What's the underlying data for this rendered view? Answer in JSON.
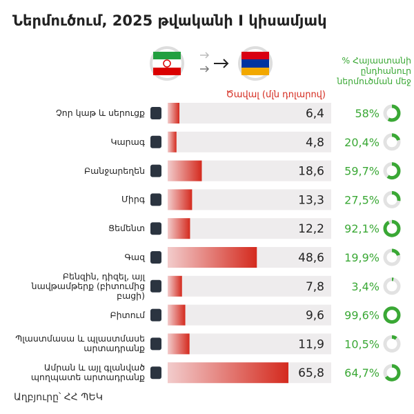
{
  "chart_data": {
    "type": "bar",
    "orientation": "horizontal",
    "title": "Ներմուծում, 2025 թվականի I կիսամյակ",
    "value_header": "Ծավալ (մլն դոլարով)",
    "share_header": "% Հայաստանի ընդհանուր ներմուծման մեջ",
    "source": "Աղբյուրը՝ ՀՀ ՊԵԿ",
    "categories": [
      "Չոր կաթ և սերուցք",
      "Կարագ",
      "Բանջարեղեն",
      "Միրգ",
      "Ցեմենտ",
      "Գազ",
      "Բենզին, դիզել, այլ նավթամթերք (բիտումից բացի)",
      "Բիտում",
      "Պլաստմասա և պլաստմասե արտադրանք",
      "Ամրան և այլ գլանված պողպատե արտադրանք"
    ],
    "values": [
      6.4,
      4.8,
      18.6,
      13.3,
      12.2,
      48.6,
      7.8,
      9.6,
      11.9,
      65.8
    ],
    "value_labels": [
      "6,4",
      "4,8",
      "18,6",
      "13,3",
      "12,2",
      "48,6",
      "7,8",
      "9,6",
      "11,9",
      "65,8"
    ],
    "shares": [
      58,
      20.4,
      59.7,
      27.5,
      92.1,
      19.9,
      3.4,
      99.6,
      10.5,
      64.7
    ],
    "share_labels": [
      "58%",
      "20,4%",
      "59,7%",
      "27,5%",
      "92,1%",
      "19,9%",
      "3,4%",
      "99,6%",
      "10,5%",
      "64,7%"
    ],
    "color": "#d42a1e",
    "color_light": "#f2cccc",
    "share_color": "#3aa835"
  }
}
